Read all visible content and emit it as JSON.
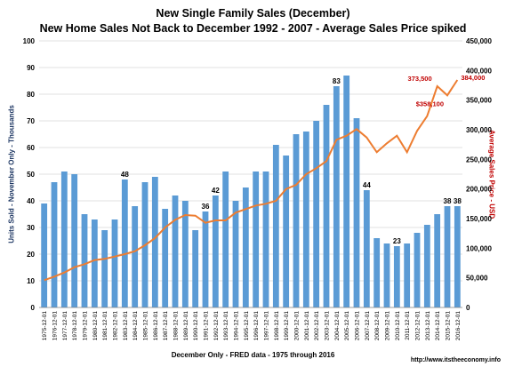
{
  "title_line1": "New Single Family Sales (December)",
  "title_line2": "New Home Sales Not Back to December 1992 - 2007 - Average Sales Price spiked",
  "source": "http://www.itstheeconomy.info",
  "colors": {
    "bars": "#5b9bd5",
    "line": "#ed7d31",
    "price_labels": "#c00000",
    "grid": "#d9d9d9"
  },
  "chart_data": {
    "type": "bar",
    "xlabel": "December Only - FRED data - 1975 through 2016",
    "categories": [
      "1975-12-01",
      "1976-12-01",
      "1977-12-01",
      "1978-12-01",
      "1979-12-01",
      "1980-12-01",
      "1981-12-01",
      "1982-12-01",
      "1983-12-01",
      "1984-12-01",
      "1985-12-01",
      "1986-12-01",
      "1987-12-01",
      "1988-12-01",
      "1989-12-01",
      "1990-12-01",
      "1991-12-01",
      "1992-12-01",
      "1993-12-01",
      "1994-12-01",
      "1995-12-01",
      "1996-12-01",
      "1997-12-01",
      "1998-12-01",
      "1999-12-01",
      "2000-12-01",
      "2001-12-01",
      "2002-12-01",
      "2003-12-01",
      "2004-12-01",
      "2005-12-01",
      "2006-12-01",
      "2007-12-01",
      "2008-12-01",
      "2009-12-01",
      "2010-12-01",
      "2011-12-01",
      "2012-12-01",
      "2013-12-01",
      "2014-12-01",
      "2015-12-01",
      "2016-12-01"
    ],
    "series": [
      {
        "values": [
          39,
          47,
          51,
          50,
          35,
          33,
          29,
          33,
          48,
          38,
          47,
          49,
          37,
          42,
          40,
          29,
          36,
          42,
          51,
          40,
          45,
          51,
          51,
          61,
          57,
          65,
          66,
          70,
          76,
          83,
          87,
          71,
          44,
          26,
          24,
          23,
          24,
          28,
          31,
          35,
          38,
          38
        ],
        "axis": "left",
        "labels": {
          "8": "48",
          "16": "36",
          "17": "42",
          "29": "83",
          "32": "44",
          "35": "23",
          "40": "38",
          "41": "38"
        }
      },
      {
        "values": [
          46000,
          52000,
          59000,
          68000,
          73000,
          80000,
          82000,
          86000,
          90000,
          95000,
          105000,
          117000,
          135000,
          148000,
          156000,
          155000,
          143000,
          147000,
          147000,
          160000,
          166000,
          172000,
          175000,
          180000,
          200000,
          207000,
          225000,
          235000,
          247000,
          283000,
          290000,
          301000,
          287000,
          262000,
          277000,
          290000,
          262000,
          298000,
          323000,
          373500,
          358100,
          384000
        ],
        "axis": "right",
        "labels": {
          "39": "373,500",
          "40": "$358,100",
          "41": "384,000"
        }
      }
    ],
    "ylabel_left": "Units Sold - November Only - Thousands",
    "ylabel_right": "Average Sales Price - USD",
    "ylim_left": [
      0,
      100
    ],
    "ylim_right": [
      0,
      450000
    ],
    "yticks_left": [
      "0",
      "10",
      "20",
      "30",
      "40",
      "50",
      "60",
      "70",
      "80",
      "90",
      "100"
    ],
    "yticks_right": [
      "0",
      "50,000",
      "100,000",
      "150,000",
      "200,000",
      "250,000",
      "300,000",
      "350,000",
      "400,000",
      "450,000"
    ],
    "grid": true
  }
}
